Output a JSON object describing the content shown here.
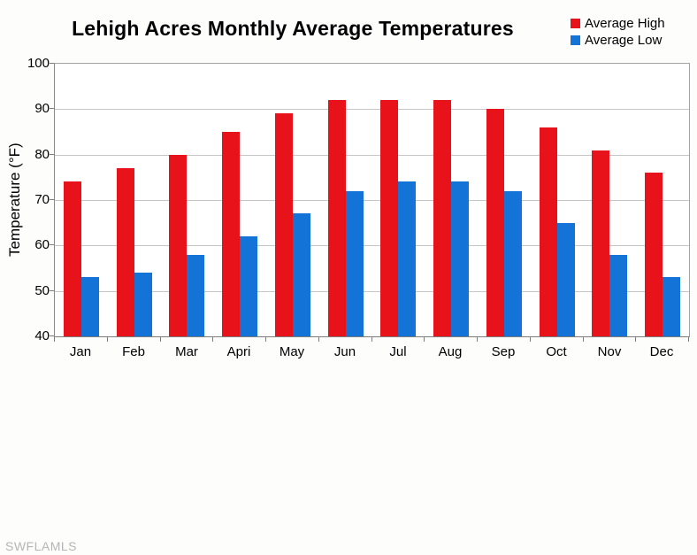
{
  "watermark": "SWFLAMLS",
  "chart_data": {
    "type": "bar",
    "title": "Lehigh Acres Monthly Average Temperatures",
    "categories": [
      "Jan",
      "Feb",
      "Mar",
      "Apri",
      "May",
      "Jun",
      "Jul",
      "Aug",
      "Sep",
      "Oct",
      "Nov",
      "Dec"
    ],
    "series": [
      {
        "name": "Average High",
        "color": "#e8121a",
        "values": [
          74,
          77,
          80,
          85,
          89,
          92,
          92,
          92,
          90,
          86,
          81,
          76
        ]
      },
      {
        "name": "Average Low",
        "color": "#1373d6",
        "values": [
          53,
          54,
          58,
          62,
          67,
          72,
          74,
          74,
          72,
          65,
          58,
          53
        ]
      }
    ],
    "xlabel": "",
    "ylabel": "Temperature (°F)",
    "ylim": [
      40,
      100
    ],
    "ytick_step": 10,
    "grid": true,
    "legend_position": "top-right"
  }
}
